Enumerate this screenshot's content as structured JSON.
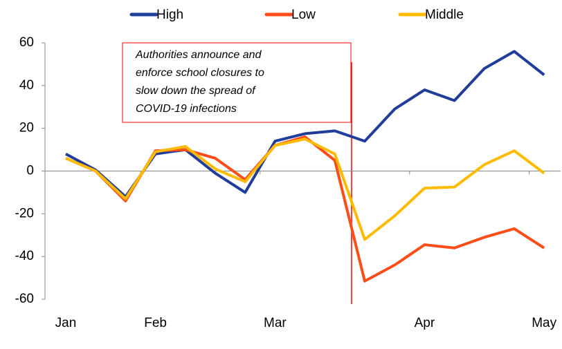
{
  "chart_data": {
    "type": "line",
    "categories": [
      "Jan",
      null,
      null,
      "Feb",
      null,
      null,
      null,
      "Mar",
      null,
      null,
      null,
      null,
      "Apr",
      null,
      null,
      null,
      "May"
    ],
    "series": [
      {
        "name": "High",
        "color": "#1f3d99",
        "values": [
          8,
          0.5,
          -12,
          8,
          10,
          -1,
          -10,
          14,
          17.5,
          18.8,
          14,
          29,
          38,
          33,
          48,
          56,
          45
        ]
      },
      {
        "name": "Low",
        "color": "#ff4d1a",
        "values": [
          6,
          0,
          -14,
          9.5,
          10,
          6,
          -4,
          12,
          16,
          5,
          -51.5,
          -44,
          -34.5,
          -36,
          -31,
          -27,
          -36
        ]
      },
      {
        "name": "Middle",
        "color": "#ffbb00",
        "values": [
          6,
          0,
          -13,
          9,
          11.5,
          1,
          -5,
          12,
          15,
          8,
          -32,
          -21,
          -8,
          -7.5,
          3,
          9.5,
          -1
        ]
      }
    ],
    "ylim": [
      -60,
      60
    ],
    "yticks": [
      -60,
      -40,
      -20,
      0,
      20,
      40,
      60
    ],
    "annotation_lines": [
      "Authorities announce and",
      "enforce school closures to",
      "slow down the spread of",
      "COVID-19 infections"
    ]
  }
}
